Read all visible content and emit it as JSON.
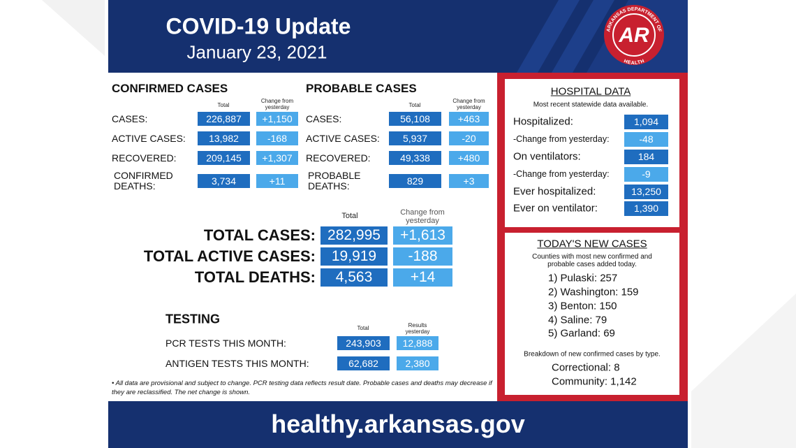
{
  "header": {
    "title": "COVID-19 Update",
    "date": "January 23, 2021",
    "logo": {
      "mark": "AR",
      "ring_top": "ARKANSAS DEPARTMENT OF",
      "ring_bottom": "HEALTH"
    }
  },
  "confirmed": {
    "title": "CONFIRMED CASES",
    "col_total": "Total",
    "col_change": "Change from yesterday",
    "rows": [
      {
        "label": "CASES:",
        "total": "226,887",
        "change": "+1,150"
      },
      {
        "label": "ACTIVE CASES:",
        "total": "13,982",
        "change": "-168"
      },
      {
        "label": "RECOVERED:",
        "total": "209,145",
        "change": "+1,307"
      },
      {
        "label": "CONFIRMED DEATHS:",
        "total": "3,734",
        "change": "+11"
      }
    ]
  },
  "probable": {
    "title": "PROBABLE CASES",
    "col_total": "Total",
    "col_change": "Change from yesterday",
    "rows": [
      {
        "label": "CASES:",
        "total": "56,108",
        "change": "+463"
      },
      {
        "label": "ACTIVE CASES:",
        "total": "5,937",
        "change": "-20"
      },
      {
        "label": "RECOVERED:",
        "total": "49,338",
        "change": "+480"
      },
      {
        "label": "PROBABLE DEATHS:",
        "total": "829",
        "change": "+3"
      }
    ]
  },
  "totals": {
    "col_total": "Total",
    "col_change": "Change from yesterday",
    "rows": [
      {
        "label": "TOTAL CASES:",
        "total": "282,995",
        "change": "+1,613"
      },
      {
        "label": "TOTAL ACTIVE CASES:",
        "total": "19,919",
        "change": "-188"
      },
      {
        "label": "TOTAL DEATHS:",
        "total": "4,563",
        "change": "+14"
      }
    ]
  },
  "testing": {
    "title": "TESTING",
    "col_total": "Total",
    "col_change": "Results yesterday",
    "rows": [
      {
        "label": "PCR TESTS THIS MONTH:",
        "total": "243,903",
        "change": "12,888"
      },
      {
        "label": "ANTIGEN TESTS THIS MONTH:",
        "total": "62,682",
        "change": "2,380"
      }
    ]
  },
  "footnote": "• All data are provisional and subject to change. PCR testing data reflects result date. Probable cases and deaths may decrease if they are reclassified. The net change is shown.",
  "hospital": {
    "title": "HOSPITAL DATA",
    "subtitle": "Most recent statewide data available.",
    "rows": [
      {
        "label": "Hospitalized:",
        "value": "1,094"
      },
      {
        "label": "-Change from yesterday:",
        "value": "-48"
      },
      {
        "label": "On ventilators:",
        "value": "184"
      },
      {
        "label": "-Change from yesterday:",
        "value": "-9"
      },
      {
        "label": "Ever hospitalized:",
        "value": "13,250"
      },
      {
        "label": "Ever on ventilator:",
        "value": "1,390"
      }
    ]
  },
  "new_cases": {
    "title": "TODAY'S NEW CASES",
    "subtitle": "Counties with most new confirmed and probable cases added today.",
    "counties": [
      "1) Pulaski: 257",
      "2) Washington: 159",
      "3) Benton: 150",
      "4) Saline: 79",
      "5) Garland: 69"
    ],
    "breakdown_note": "Breakdown of new confirmed cases by type.",
    "breakdown": [
      "Correctional: 8",
      "Community: 1,142"
    ]
  },
  "footer": {
    "url": "healthy.arkansas.gov"
  }
}
